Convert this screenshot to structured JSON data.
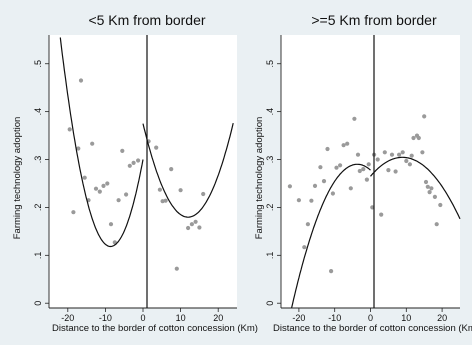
{
  "chart_data": [
    {
      "type": "scatter",
      "title": "<5 Km from border",
      "xlabel": "Distance to the border of cotton concession (Km)",
      "ylabel": "Farming technology adoption",
      "xlim": [
        -25,
        25
      ],
      "ylim": [
        -0.01,
        0.56
      ],
      "xticks": [
        -20,
        -10,
        0,
        10,
        20
      ],
      "yticks": [
        0,
        0.1,
        0.2,
        0.3,
        0.4,
        0.5
      ],
      "x_tick_labels": [
        "-20",
        "-10",
        "0",
        "10",
        "20"
      ],
      "y_tick_labels": [
        "0",
        ".1",
        ".2",
        ".3",
        ".4",
        ".5"
      ],
      "cutoff": 0,
      "points": [
        [
          -16.5,
          0.465
        ],
        [
          -19.5,
          0.363
        ],
        [
          -18.5,
          0.19
        ],
        [
          -17.2,
          0.323
        ],
        [
          -15.5,
          0.262
        ],
        [
          -14.5,
          0.215
        ],
        [
          -13.5,
          0.333
        ],
        [
          -12.5,
          0.239
        ],
        [
          -11.5,
          0.233
        ],
        [
          -10.5,
          0.245
        ],
        [
          -9.5,
          0.25
        ],
        [
          -8.5,
          0.165
        ],
        [
          -7.5,
          0.127
        ],
        [
          -6.5,
          0.215
        ],
        [
          -5.5,
          0.318
        ],
        [
          -4.5,
          0.227
        ],
        [
          -3.5,
          0.287
        ],
        [
          -2.5,
          0.293
        ],
        [
          -1.3,
          0.298
        ],
        [
          1.5,
          0.338
        ],
        [
          3.5,
          0.325
        ],
        [
          4.5,
          0.237
        ],
        [
          5.2,
          0.213
        ],
        [
          6.0,
          0.214
        ],
        [
          7.5,
          0.28
        ],
        [
          9.0,
          0.072
        ],
        [
          10.0,
          0.236
        ],
        [
          12.0,
          0.157
        ],
        [
          13.0,
          0.165
        ],
        [
          14.0,
          0.17
        ],
        [
          15.0,
          0.158
        ],
        [
          16.0,
          0.228
        ]
      ],
      "fits": [
        {
          "from": -22,
          "to": 0,
          "a": 0.3,
          "b": 0.0421,
          "c": 0.00244
        },
        {
          "from": 0,
          "to": 24,
          "a": 0.375,
          "b": -0.0326,
          "c": 0.00136
        }
      ]
    },
    {
      "type": "scatter",
      "title": ">=5 Km from border",
      "xlabel": "Distance to the border of cotton concession (Km)",
      "ylabel": "Farming technology adoption",
      "xlim": [
        -25,
        25
      ],
      "ylim": [
        -0.01,
        0.56
      ],
      "xticks": [
        -20,
        -10,
        0,
        10,
        20
      ],
      "yticks": [
        0,
        0.1,
        0.2,
        0.3,
        0.4,
        0.5
      ],
      "x_tick_labels": [
        "-20",
        "-10",
        "0",
        "10",
        "20"
      ],
      "y_tick_labels": [
        "0",
        ".1",
        ".2",
        ".3",
        ".4",
        ".5"
      ],
      "cutoff": 0,
      "points": [
        [
          -22.5,
          0.244
        ],
        [
          -20.0,
          0.215
        ],
        [
          -18.5,
          0.117
        ],
        [
          -17.5,
          0.165
        ],
        [
          -16.5,
          0.214
        ],
        [
          -15.5,
          0.245
        ],
        [
          -14.0,
          0.284
        ],
        [
          -13.0,
          0.255
        ],
        [
          -12.0,
          0.322
        ],
        [
          -11.0,
          0.067
        ],
        [
          -10.5,
          0.229
        ],
        [
          -9.5,
          0.283
        ],
        [
          -8.5,
          0.288
        ],
        [
          -7.5,
          0.33
        ],
        [
          -6.5,
          0.333
        ],
        [
          -5.5,
          0.24
        ],
        [
          -4.5,
          0.385
        ],
        [
          -3.5,
          0.31
        ],
        [
          -3.0,
          0.276
        ],
        [
          -2.0,
          0.28
        ],
        [
          -1.0,
          0.258
        ],
        [
          -0.5,
          0.29
        ],
        [
          0.5,
          0.2
        ],
        [
          1.0,
          0.31
        ],
        [
          2.0,
          0.3
        ],
        [
          3.0,
          0.185
        ],
        [
          4.0,
          0.315
        ],
        [
          5.0,
          0.278
        ],
        [
          6.0,
          0.31
        ],
        [
          7.0,
          0.275
        ],
        [
          8.0,
          0.31
        ],
        [
          9.0,
          0.315
        ],
        [
          10.0,
          0.297
        ],
        [
          11.0,
          0.29
        ],
        [
          11.5,
          0.308
        ],
        [
          12.0,
          0.345
        ],
        [
          13.0,
          0.35
        ],
        [
          13.5,
          0.345
        ],
        [
          14.5,
          0.315
        ],
        [
          15.0,
          0.39
        ],
        [
          15.5,
          0.253
        ],
        [
          16.0,
          0.243
        ],
        [
          16.5,
          0.232
        ],
        [
          17.0,
          0.24
        ],
        [
          18.0,
          0.222
        ],
        [
          18.5,
          0.165
        ],
        [
          19.5,
          0.205
        ]
      ],
      "fits": [
        {
          "from": -23.5,
          "to": 0,
          "a": 0.278,
          "b": -0.00657,
          "c": -0.000891
        },
        {
          "from": 0,
          "to": 25,
          "a": 0.265,
          "b": 0.00887,
          "c": -0.000497
        }
      ]
    }
  ]
}
